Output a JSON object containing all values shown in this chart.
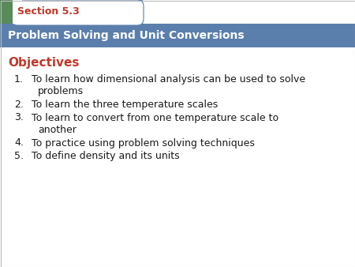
{
  "section_label": "Section 5.3",
  "title": "Problem Solving and Unit Conversions",
  "objectives_label": "Objectives",
  "items": [
    [
      "1.",
      "To learn how dimensional analysis can be used to solve",
      "problems"
    ],
    [
      "2.",
      "To learn the three temperature scales",
      ""
    ],
    [
      "3.",
      "To learn to convert from one temperature scale to",
      "another"
    ],
    [
      "4.",
      "To practice using problem solving techniques",
      ""
    ],
    [
      "5.",
      "To define density and its units",
      ""
    ]
  ],
  "bg_color": "#ffffff",
  "header_bg_color": "#5b7fac",
  "section_tab_bg": "#ffffff",
  "section_text_color": "#c0392b",
  "header_text_color": "#ffffff",
  "objectives_color": "#c0392b",
  "body_text_color": "#1a1a1a",
  "tab_border_color": "#5b7fac",
  "green_bar_color": "#5a8a5a",
  "item_text_color": "#1a1a1a",
  "fig_width": 4.5,
  "fig_height": 3.38,
  "dpi": 100
}
